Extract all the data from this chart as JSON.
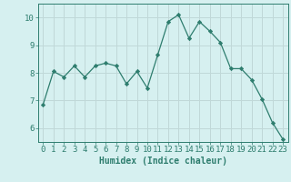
{
  "x": [
    0,
    1,
    2,
    3,
    4,
    5,
    6,
    7,
    8,
    9,
    10,
    11,
    12,
    13,
    14,
    15,
    16,
    17,
    18,
    19,
    20,
    21,
    22,
    23
  ],
  "y": [
    6.85,
    8.05,
    7.85,
    8.25,
    7.85,
    8.25,
    8.35,
    8.25,
    7.6,
    8.05,
    7.45,
    8.65,
    9.85,
    10.1,
    9.25,
    9.85,
    9.5,
    9.1,
    8.15,
    8.15,
    7.75,
    7.05,
    6.2,
    5.6
  ],
  "xlabel": "Humidex (Indice chaleur)",
  "xlim": [
    -0.5,
    23.5
  ],
  "ylim": [
    5.5,
    10.5
  ],
  "yticks": [
    6,
    7,
    8,
    9,
    10
  ],
  "xticks": [
    0,
    1,
    2,
    3,
    4,
    5,
    6,
    7,
    8,
    9,
    10,
    11,
    12,
    13,
    14,
    15,
    16,
    17,
    18,
    19,
    20,
    21,
    22,
    23
  ],
  "line_color": "#2e7d6e",
  "marker": "D",
  "marker_size": 2.2,
  "bg_color": "#d6f0f0",
  "grid_color": "#c0d8d8",
  "tick_color": "#2e7d6e",
  "label_color": "#2e7d6e",
  "font_size_xlabel": 7,
  "font_size_tick": 6.5
}
